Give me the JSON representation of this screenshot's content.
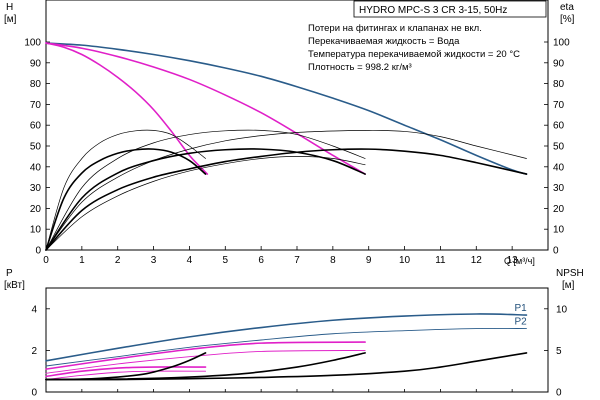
{
  "chart_data": [
    {
      "type": "line",
      "title": "HYDRO MPC-S 3 CR 3-15, 50Hz",
      "notes": [
        "Потери на фитингах и клапанах не вкл.",
        "Перекачиваемая жидкость = Вода",
        "Температура перекачиваемой жидкости = 20 °C",
        "Плотность = 998.2 кг/м³"
      ],
      "xlabel": "Q [м³/ч]",
      "ylabel_left": "H",
      "ylabel_left_unit": "[м]",
      "ylabel_right": "eta",
      "ylabel_right_unit": "[%]",
      "xlim": [
        0,
        14
      ],
      "ylim": [
        0,
        100
      ],
      "xticks": [
        0,
        1,
        2,
        3,
        4,
        5,
        6,
        7,
        8,
        9,
        10,
        11,
        12,
        13
      ],
      "yticks": [
        0,
        10,
        20,
        30,
        40,
        50,
        60,
        70,
        80,
        90,
        100
      ],
      "grid": false,
      "series": [
        {
          "role": "head-3-pumps",
          "color": "#2a5c8a",
          "width": 1.6,
          "x": [
            0,
            1,
            2,
            3,
            4,
            5,
            6,
            7,
            8,
            9,
            10,
            11,
            12,
            13,
            13.4
          ],
          "y": [
            99.5,
            98.5,
            96.5,
            94,
            91,
            87.5,
            83.5,
            78.5,
            73,
            67,
            60,
            53,
            45.5,
            38.5,
            36.5
          ]
        },
        {
          "role": "head-2-pumps",
          "color": "#e020c8",
          "width": 1.6,
          "x": [
            0,
            1,
            2,
            3,
            4,
            5,
            6,
            7,
            8,
            8.6,
            8.9
          ],
          "y": [
            99.5,
            97,
            93,
            88,
            82,
            74.5,
            66,
            56,
            45.5,
            39.5,
            36.5
          ]
        },
        {
          "role": "head-1-pump",
          "color": "#e020c8",
          "width": 1.6,
          "x": [
            0,
            0.5,
            1,
            1.5,
            2,
            2.5,
            3,
            3.5,
            4,
            4.3,
            4.5
          ],
          "y": [
            99.5,
            97.5,
            94,
            89,
            83,
            76,
            67.5,
            57,
            45.5,
            40,
            36.5
          ]
        },
        {
          "role": "efficiency-3-pumps",
          "color": "#000000",
          "width": 1.6,
          "x": [
            0,
            1,
            2,
            3,
            4,
            5,
            6,
            7,
            8,
            9,
            10,
            11,
            12,
            13.4
          ],
          "y": [
            0,
            19,
            29,
            35,
            39,
            42.5,
            45,
            47,
            48.2,
            48.5,
            47.5,
            45.5,
            42,
            36.5
          ]
        },
        {
          "role": "efficiency-2-pumps",
          "color": "#000000",
          "width": 1.6,
          "x": [
            0,
            1,
            2,
            3,
            4,
            5,
            6,
            7,
            8,
            8.9
          ],
          "y": [
            0,
            25,
            37,
            43,
            46.5,
            48.2,
            48.5,
            47,
            43,
            36.5
          ]
        },
        {
          "role": "efficiency-1-pump",
          "color": "#000000",
          "width": 1.6,
          "x": [
            0,
            0.5,
            1,
            1.5,
            2,
            2.5,
            3,
            3.5,
            4,
            4.45
          ],
          "y": [
            0,
            25,
            37,
            43,
            46.5,
            48.2,
            48.5,
            47,
            43,
            36.5
          ]
        },
        {
          "role": "efficiency-extension-3",
          "color": "#000000",
          "width": 0.7,
          "x": [
            0,
            1,
            2,
            3,
            4,
            5,
            6,
            7,
            8,
            9,
            10,
            11,
            12,
            13.4
          ],
          "y": [
            0,
            23,
            35,
            43,
            48.5,
            52.5,
            55,
            56.5,
            57.2,
            57.5,
            57,
            54.5,
            50,
            44
          ]
        },
        {
          "role": "efficiency-extension-2",
          "color": "#000000",
          "width": 0.7,
          "x": [
            0,
            1,
            2,
            3,
            4,
            5,
            6,
            7,
            8,
            8.9
          ],
          "y": [
            0,
            30,
            44,
            51.5,
            55.5,
            57.3,
            57.5,
            55.5,
            50,
            44
          ]
        },
        {
          "role": "efficiency-extension-1",
          "color": "#000000",
          "width": 0.7,
          "x": [
            0,
            0.5,
            1,
            1.5,
            2,
            2.5,
            3,
            3.5,
            4,
            4.45
          ],
          "y": [
            0,
            30,
            44,
            51.5,
            55.5,
            57.3,
            57.5,
            55.5,
            50,
            44
          ]
        },
        {
          "role": "efficiency-thin-lower",
          "color": "#000000",
          "width": 0.7,
          "x": [
            0,
            1,
            2,
            3,
            4,
            5,
            6,
            7,
            8,
            8.9
          ],
          "y": [
            0,
            16,
            26,
            33,
            38,
            41.5,
            44,
            45,
            44,
            41
          ]
        }
      ]
    },
    {
      "type": "line",
      "xlim": [
        0,
        14
      ],
      "ylabel_left": "P",
      "ylabel_left_unit": "[кВт]",
      "ylabel_right": "NPSH",
      "ylabel_right_unit": "[м]",
      "ylim_left": [
        0,
        5
      ],
      "ylim_right": [
        0,
        12.5
      ],
      "yticks_left": [
        0,
        2,
        4
      ],
      "yticks_right": [
        0,
        5,
        10
      ],
      "grid": false,
      "series": [
        {
          "name": "P1",
          "color": "#2a5c8a",
          "width": 1.6,
          "x": [
            0,
            2,
            4,
            6,
            8,
            10,
            12,
            13.4
          ],
          "y": [
            1.5,
            2.1,
            2.65,
            3.1,
            3.45,
            3.65,
            3.75,
            3.7
          ]
        },
        {
          "name": "P2",
          "color": "#2a5c8a",
          "width": 0.9,
          "x": [
            0,
            2,
            4,
            6,
            8,
            10,
            12,
            13.4
          ],
          "y": [
            1.25,
            1.7,
            2.15,
            2.5,
            2.8,
            2.95,
            3.05,
            3.05
          ]
        },
        {
          "role": "P1-2-pumps",
          "color": "#e020c8",
          "width": 1.6,
          "x": [
            0,
            2,
            4,
            6,
            8.9
          ],
          "y": [
            1.1,
            1.6,
            2.05,
            2.35,
            2.4
          ]
        },
        {
          "role": "P2-2-pumps",
          "color": "#e020c8",
          "width": 0.9,
          "x": [
            0,
            2,
            4,
            6,
            8.9
          ],
          "y": [
            0.9,
            1.35,
            1.7,
            1.95,
            2.0
          ]
        },
        {
          "role": "P1-1-pump",
          "color": "#e020c8",
          "width": 1.6,
          "x": [
            0,
            1,
            2,
            3,
            4.45
          ],
          "y": [
            0.75,
            1.0,
            1.15,
            1.2,
            1.2
          ]
        },
        {
          "role": "P2-1-pump",
          "color": "#e020c8",
          "width": 0.9,
          "x": [
            0,
            1,
            2,
            3,
            4.45
          ],
          "y": [
            0.6,
            0.8,
            0.95,
            1.0,
            1.0
          ]
        },
        {
          "role": "NPSH-3-pumps",
          "axis": "right",
          "color": "#000000",
          "width": 1.6,
          "x": [
            0,
            2,
            4,
            6,
            8,
            10,
            11,
            12,
            13.4
          ],
          "y": [
            1.5,
            1.5,
            1.6,
            1.75,
            2.0,
            2.5,
            3.0,
            3.7,
            4.7
          ]
        },
        {
          "role": "NPSH-2-pumps",
          "axis": "right",
          "color": "#000000",
          "width": 1.6,
          "x": [
            0,
            2,
            4,
            5.5,
            7,
            8,
            8.9
          ],
          "y": [
            1.5,
            1.55,
            1.8,
            2.2,
            3.0,
            3.8,
            4.7
          ]
        },
        {
          "role": "NPSH-1-pump",
          "axis": "right",
          "color": "#000000",
          "width": 1.6,
          "x": [
            0,
            1,
            2,
            2.8,
            3.5,
            4,
            4.45
          ],
          "y": [
            1.5,
            1.55,
            1.8,
            2.2,
            3.0,
            3.8,
            4.7
          ]
        }
      ]
    }
  ]
}
